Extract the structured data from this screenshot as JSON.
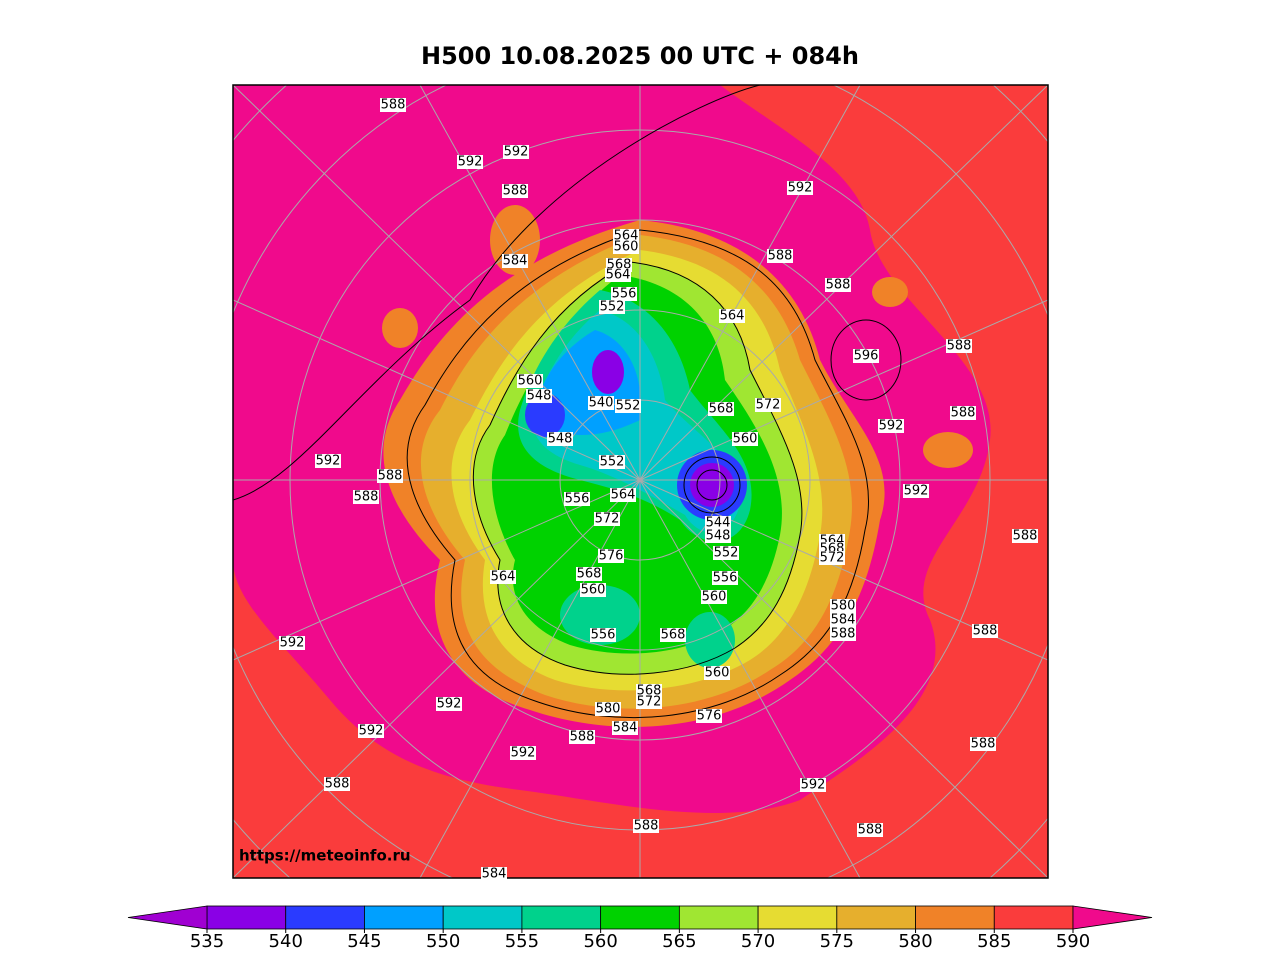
{
  "title": "H500  10.08.2025 00 UTC + 084h",
  "watermark": "https://meteoinfo.ru",
  "colorbar": {
    "ticks": [
      535,
      540,
      545,
      550,
      555,
      560,
      565,
      570,
      575,
      580,
      585,
      590
    ],
    "colors": [
      "#8a00e6",
      "#2a3bff",
      "#00a0ff",
      "#00c8c8",
      "#00d28c",
      "#00d200",
      "#a0e632",
      "#e6dc32",
      "#e6af2d",
      "#f08228",
      "#fa3c3c"
    ],
    "under": "#a000d2",
    "over": "#f00a8c"
  },
  "contour_labels": [
    588,
    592,
    592,
    588,
    584,
    592,
    588,
    588,
    564,
    596,
    588,
    588,
    592,
    592,
    588,
    592,
    588,
    588,
    560,
    548,
    540,
    552,
    548,
    568,
    572,
    560,
    552,
    564,
    556,
    572,
    544,
    548,
    552,
    576,
    568,
    560,
    564,
    556,
    560,
    556,
    568,
    564,
    568,
    572,
    580,
    584,
    588,
    588,
    560,
    568,
    572,
    576,
    580,
    584,
    588,
    592,
    592,
    592,
    592,
    588,
    588,
    592,
    588,
    588,
    564,
    560,
    568,
    564,
    556,
    552,
    584
  ]
}
